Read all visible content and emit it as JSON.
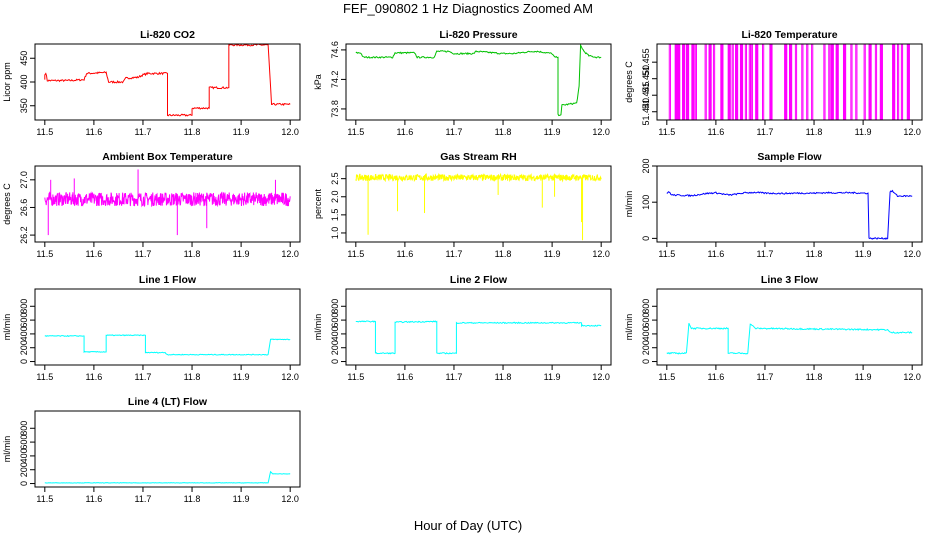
{
  "figure": {
    "title": "FEF_090802 1 Hz Diagnostics Zoomed AM",
    "xlabel": "Hour of Day (UTC)"
  },
  "chart_data": [
    {
      "type": "line",
      "title": "Li-820 CO2",
      "ylabel": "Licor ppm",
      "color": "#ff0000",
      "xlim": [
        11.5,
        12.0
      ],
      "ylim": [
        320,
        480
      ],
      "xticks": [
        "11.5",
        "11.6",
        "11.7",
        "11.8",
        "11.9",
        "12.0"
      ],
      "yticks": [
        {
          "v": 350,
          "t": "350"
        },
        {
          "v": 400,
          "t": "400"
        },
        {
          "v": 450,
          "t": "450"
        }
      ],
      "noise": 2,
      "series": [
        {
          "x": [
            11.5,
            11.5,
            11.502,
            11.505,
            11.55,
            11.58,
            11.585,
            11.625,
            11.63,
            11.66,
            11.665,
            11.69,
            11.7,
            11.71,
            11.75,
            11.75,
            11.8,
            11.8,
            11.835,
            11.835,
            11.875,
            11.875,
            11.955,
            11.962,
            12.0
          ],
          "y": [
            405,
            415,
            420,
            403,
            403,
            405,
            418,
            420,
            400,
            400,
            408,
            410,
            415,
            418,
            418,
            330,
            330,
            345,
            345,
            388,
            388,
            478,
            478,
            353,
            353
          ]
        }
      ]
    },
    {
      "type": "line",
      "title": "Li-820 Pressure",
      "ylabel": "kPa",
      "color": "#00c000",
      "xlim": [
        11.5,
        12.0
      ],
      "ylim": [
        73.65,
        74.68
      ],
      "xticks": [
        "11.5",
        "11.6",
        "11.7",
        "11.8",
        "11.9",
        "12.0"
      ],
      "yticks": [
        {
          "v": 73.8,
          "t": "73.8"
        },
        {
          "v": 74.2,
          "t": "74.2"
        },
        {
          "v": 74.6,
          "t": "74.6"
        }
      ],
      "noise": 0.01,
      "series": [
        {
          "x": [
            11.5,
            11.51,
            11.515,
            11.575,
            11.58,
            11.62,
            11.625,
            11.66,
            11.665,
            11.69,
            11.7,
            11.74,
            11.745,
            11.8,
            11.82,
            11.86,
            11.87,
            11.9,
            11.905,
            11.912,
            11.912,
            11.918,
            11.92,
            11.95,
            11.955,
            11.958,
            11.965,
            11.975,
            11.99,
            12.0
          ],
          "y": [
            74.56,
            74.56,
            74.5,
            74.5,
            74.56,
            74.56,
            74.5,
            74.5,
            74.58,
            74.58,
            74.55,
            74.55,
            74.58,
            74.55,
            74.55,
            74.58,
            74.58,
            74.55,
            74.5,
            74.5,
            73.72,
            73.72,
            73.85,
            73.88,
            74.1,
            74.66,
            74.58,
            74.52,
            74.5,
            74.5
          ]
        }
      ]
    },
    {
      "type": "line",
      "title": "Li-820 Temperature",
      "ylabel": "degrees C",
      "color": "#ff00ff",
      "xlim": [
        11.5,
        12.0
      ],
      "ylim": [
        51.4375,
        51.4605
      ],
      "xticks": [
        "11.5",
        "11.6",
        "11.7",
        "11.8",
        "11.9",
        "12.0"
      ],
      "yticks": [
        {
          "v": 51.44,
          "t": "51.440"
        },
        {
          "v": 51.445,
          "t": "51.445"
        },
        {
          "v": 51.45,
          "t": "51.450"
        },
        {
          "v": 51.455,
          "t": "51.455"
        }
      ],
      "pattern": "toggle",
      "low": 51.4375,
      "high": 51.4605,
      "spikes_x": [
        11.505,
        11.517,
        11.519,
        11.522,
        11.524,
        11.532,
        11.534,
        11.54,
        11.542,
        11.551,
        11.553,
        11.558,
        11.578,
        11.586,
        11.588,
        11.595,
        11.61,
        11.612,
        11.625,
        11.627,
        11.633,
        11.64,
        11.642,
        11.65,
        11.652,
        11.66,
        11.668,
        11.672,
        11.681,
        11.683,
        11.695,
        11.71,
        11.712,
        11.74,
        11.742,
        11.75,
        11.752,
        11.762,
        11.775,
        11.785,
        11.795,
        11.82,
        11.83,
        11.835,
        11.837,
        11.845,
        11.847,
        11.86,
        11.862,
        11.875,
        11.885,
        11.902,
        11.912,
        11.914,
        11.925,
        11.935,
        11.937,
        11.96,
        11.962,
        11.97,
        11.978,
        11.99,
        11.992
      ]
    },
    {
      "type": "line",
      "title": "Ambient Box Temperature",
      "ylabel": "degrees C",
      "color": "#ff00ff",
      "xlim": [
        11.5,
        12.0
      ],
      "ylim": [
        26.1,
        27.2
      ],
      "xticks": [
        "11.5",
        "11.6",
        "11.7",
        "11.8",
        "11.9",
        "12.0"
      ],
      "yticks": [
        {
          "v": 26.2,
          "t": "26.2"
        },
        {
          "v": 26.6,
          "t": "26.6"
        },
        {
          "v": 27.0,
          "t": "27.0"
        }
      ],
      "pattern": "band",
      "center": 26.72,
      "spread": 0.1,
      "spikes": [
        {
          "x": 11.507,
          "y": 26.2
        },
        {
          "x": 11.512,
          "y": 27.0
        },
        {
          "x": 11.56,
          "y": 27.02
        },
        {
          "x": 11.69,
          "y": 27.15
        },
        {
          "x": 11.77,
          "y": 26.2
        },
        {
          "x": 11.83,
          "y": 26.3
        },
        {
          "x": 11.97,
          "y": 27.0
        }
      ]
    },
    {
      "type": "line",
      "title": "Gas Stream RH",
      "ylabel": "percent",
      "color": "#ffff00",
      "xlim": [
        11.5,
        12.0
      ],
      "ylim": [
        0.75,
        2.85
      ],
      "xticks": [
        "11.5",
        "11.6",
        "11.7",
        "11.8",
        "11.9",
        "12.0"
      ],
      "yticks": [
        {
          "v": 1.0,
          "t": "1.0"
        },
        {
          "v": 1.5,
          "t": "1.5"
        },
        {
          "v": 2.0,
          "t": "2.0"
        },
        {
          "v": 2.5,
          "t": "2.5"
        }
      ],
      "pattern": "band",
      "center": 2.53,
      "spread": 0.09,
      "spikes": [
        {
          "x": 11.525,
          "y": 0.95
        },
        {
          "x": 11.585,
          "y": 1.6
        },
        {
          "x": 11.64,
          "y": 1.55
        },
        {
          "x": 11.79,
          "y": 2.05
        },
        {
          "x": 11.88,
          "y": 1.7
        },
        {
          "x": 11.905,
          "y": 2.0
        },
        {
          "x": 11.96,
          "y": 1.3
        },
        {
          "x": 11.962,
          "y": 0.8
        }
      ]
    },
    {
      "type": "line",
      "title": "Sample Flow",
      "ylabel": "ml/min",
      "color": "#0000ff",
      "xlim": [
        11.5,
        12.0
      ],
      "ylim": [
        -10,
        200
      ],
      "xticks": [
        "11.5",
        "11.6",
        "11.7",
        "11.8",
        "11.9",
        "12.0"
      ],
      "yticks": [
        {
          "v": 0,
          "t": "0"
        },
        {
          "v": 100,
          "t": "100"
        },
        {
          "v": 200,
          "t": "200"
        }
      ],
      "noise": 2,
      "series": [
        {
          "x": [
            11.5,
            11.505,
            11.51,
            11.55,
            11.58,
            11.6,
            11.62,
            11.63,
            11.66,
            11.68,
            11.7,
            11.74,
            11.76,
            11.8,
            11.82,
            11.88,
            11.9,
            11.91,
            11.912,
            11.95,
            11.955,
            11.96,
            11.97,
            12.0
          ],
          "y": [
            125,
            128,
            120,
            118,
            124,
            126,
            121,
            120,
            126,
            127,
            125,
            124,
            125,
            125,
            126,
            126,
            125,
            125,
            0,
            0,
            130,
            130,
            117,
            117
          ]
        }
      ]
    },
    {
      "type": "line",
      "title": "Line 1 Flow",
      "ylabel": "ml/min",
      "color": "#00ffff",
      "xlim": [
        11.5,
        12.0
      ],
      "ylim": [
        -50,
        1050
      ],
      "xticks": [
        "11.5",
        "11.6",
        "11.7",
        "11.8",
        "11.9",
        "12.0"
      ],
      "yticks": [
        {
          "v": 0,
          "t": "0"
        },
        {
          "v": 200,
          "t": "200"
        },
        {
          "v": 400,
          "t": "400"
        },
        {
          "v": 600,
          "t": "600"
        },
        {
          "v": 800,
          "t": "800"
        }
      ],
      "noise": 6,
      "series": [
        {
          "x": [
            11.5,
            11.58,
            11.58,
            11.625,
            11.625,
            11.705,
            11.705,
            11.745,
            11.75,
            11.955,
            11.96,
            12.0
          ],
          "y": [
            370,
            370,
            140,
            140,
            380,
            380,
            130,
            130,
            100,
            100,
            320,
            320
          ]
        }
      ]
    },
    {
      "type": "line",
      "title": "Line 2 Flow",
      "ylabel": "ml/min",
      "color": "#00ffff",
      "xlim": [
        11.5,
        12.0
      ],
      "ylim": [
        -50,
        1050
      ],
      "xticks": [
        "11.5",
        "11.6",
        "11.7",
        "11.8",
        "11.9",
        "12.0"
      ],
      "yticks": [
        {
          "v": 0,
          "t": "0"
        },
        {
          "v": 200,
          "t": "200"
        },
        {
          "v": 400,
          "t": "400"
        },
        {
          "v": 600,
          "t": "600"
        },
        {
          "v": 800,
          "t": "800"
        }
      ],
      "noise": 8,
      "series": [
        {
          "x": [
            11.5,
            11.54,
            11.54,
            11.58,
            11.58,
            11.665,
            11.665,
            11.705,
            11.705,
            11.96,
            11.96,
            12.0
          ],
          "y": [
            580,
            580,
            120,
            120,
            570,
            580,
            120,
            120,
            560,
            560,
            520,
            520
          ]
        }
      ]
    },
    {
      "type": "line",
      "title": "Line 3 Flow",
      "ylabel": "ml/min",
      "color": "#00ffff",
      "xlim": [
        11.5,
        12.0
      ],
      "ylim": [
        -50,
        1050
      ],
      "xticks": [
        "11.5",
        "11.6",
        "11.7",
        "11.8",
        "11.9",
        "12.0"
      ],
      "yticks": [
        {
          "v": 0,
          "t": "0"
        },
        {
          "v": 200,
          "t": "200"
        },
        {
          "v": 400,
          "t": "400"
        },
        {
          "v": 600,
          "t": "600"
        },
        {
          "v": 800,
          "t": "800"
        }
      ],
      "noise": 10,
      "series": [
        {
          "x": [
            11.5,
            11.54,
            11.545,
            11.55,
            11.625,
            11.625,
            11.665,
            11.67,
            11.68,
            11.95,
            11.955,
            12.0
          ],
          "y": [
            120,
            120,
            560,
            480,
            480,
            120,
            120,
            550,
            480,
            460,
            420,
            420
          ]
        }
      ]
    },
    {
      "type": "line",
      "title": "Line 4 (LT) Flow",
      "ylabel": "ml/min",
      "color": "#00ffff",
      "xlim": [
        11.5,
        12.0
      ],
      "ylim": [
        -50,
        1050
      ],
      "xticks": [
        "11.5",
        "11.6",
        "11.7",
        "11.8",
        "11.9",
        "12.0"
      ],
      "yticks": [
        {
          "v": 0,
          "t": "0"
        },
        {
          "v": 200,
          "t": "200"
        },
        {
          "v": 400,
          "t": "400"
        },
        {
          "v": 600,
          "t": "600"
        },
        {
          "v": 800,
          "t": "800"
        }
      ],
      "noise": 3,
      "series": [
        {
          "x": [
            11.5,
            11.955,
            11.96,
            11.965,
            12.0
          ],
          "y": [
            10,
            10,
            170,
            140,
            140
          ]
        }
      ]
    }
  ]
}
